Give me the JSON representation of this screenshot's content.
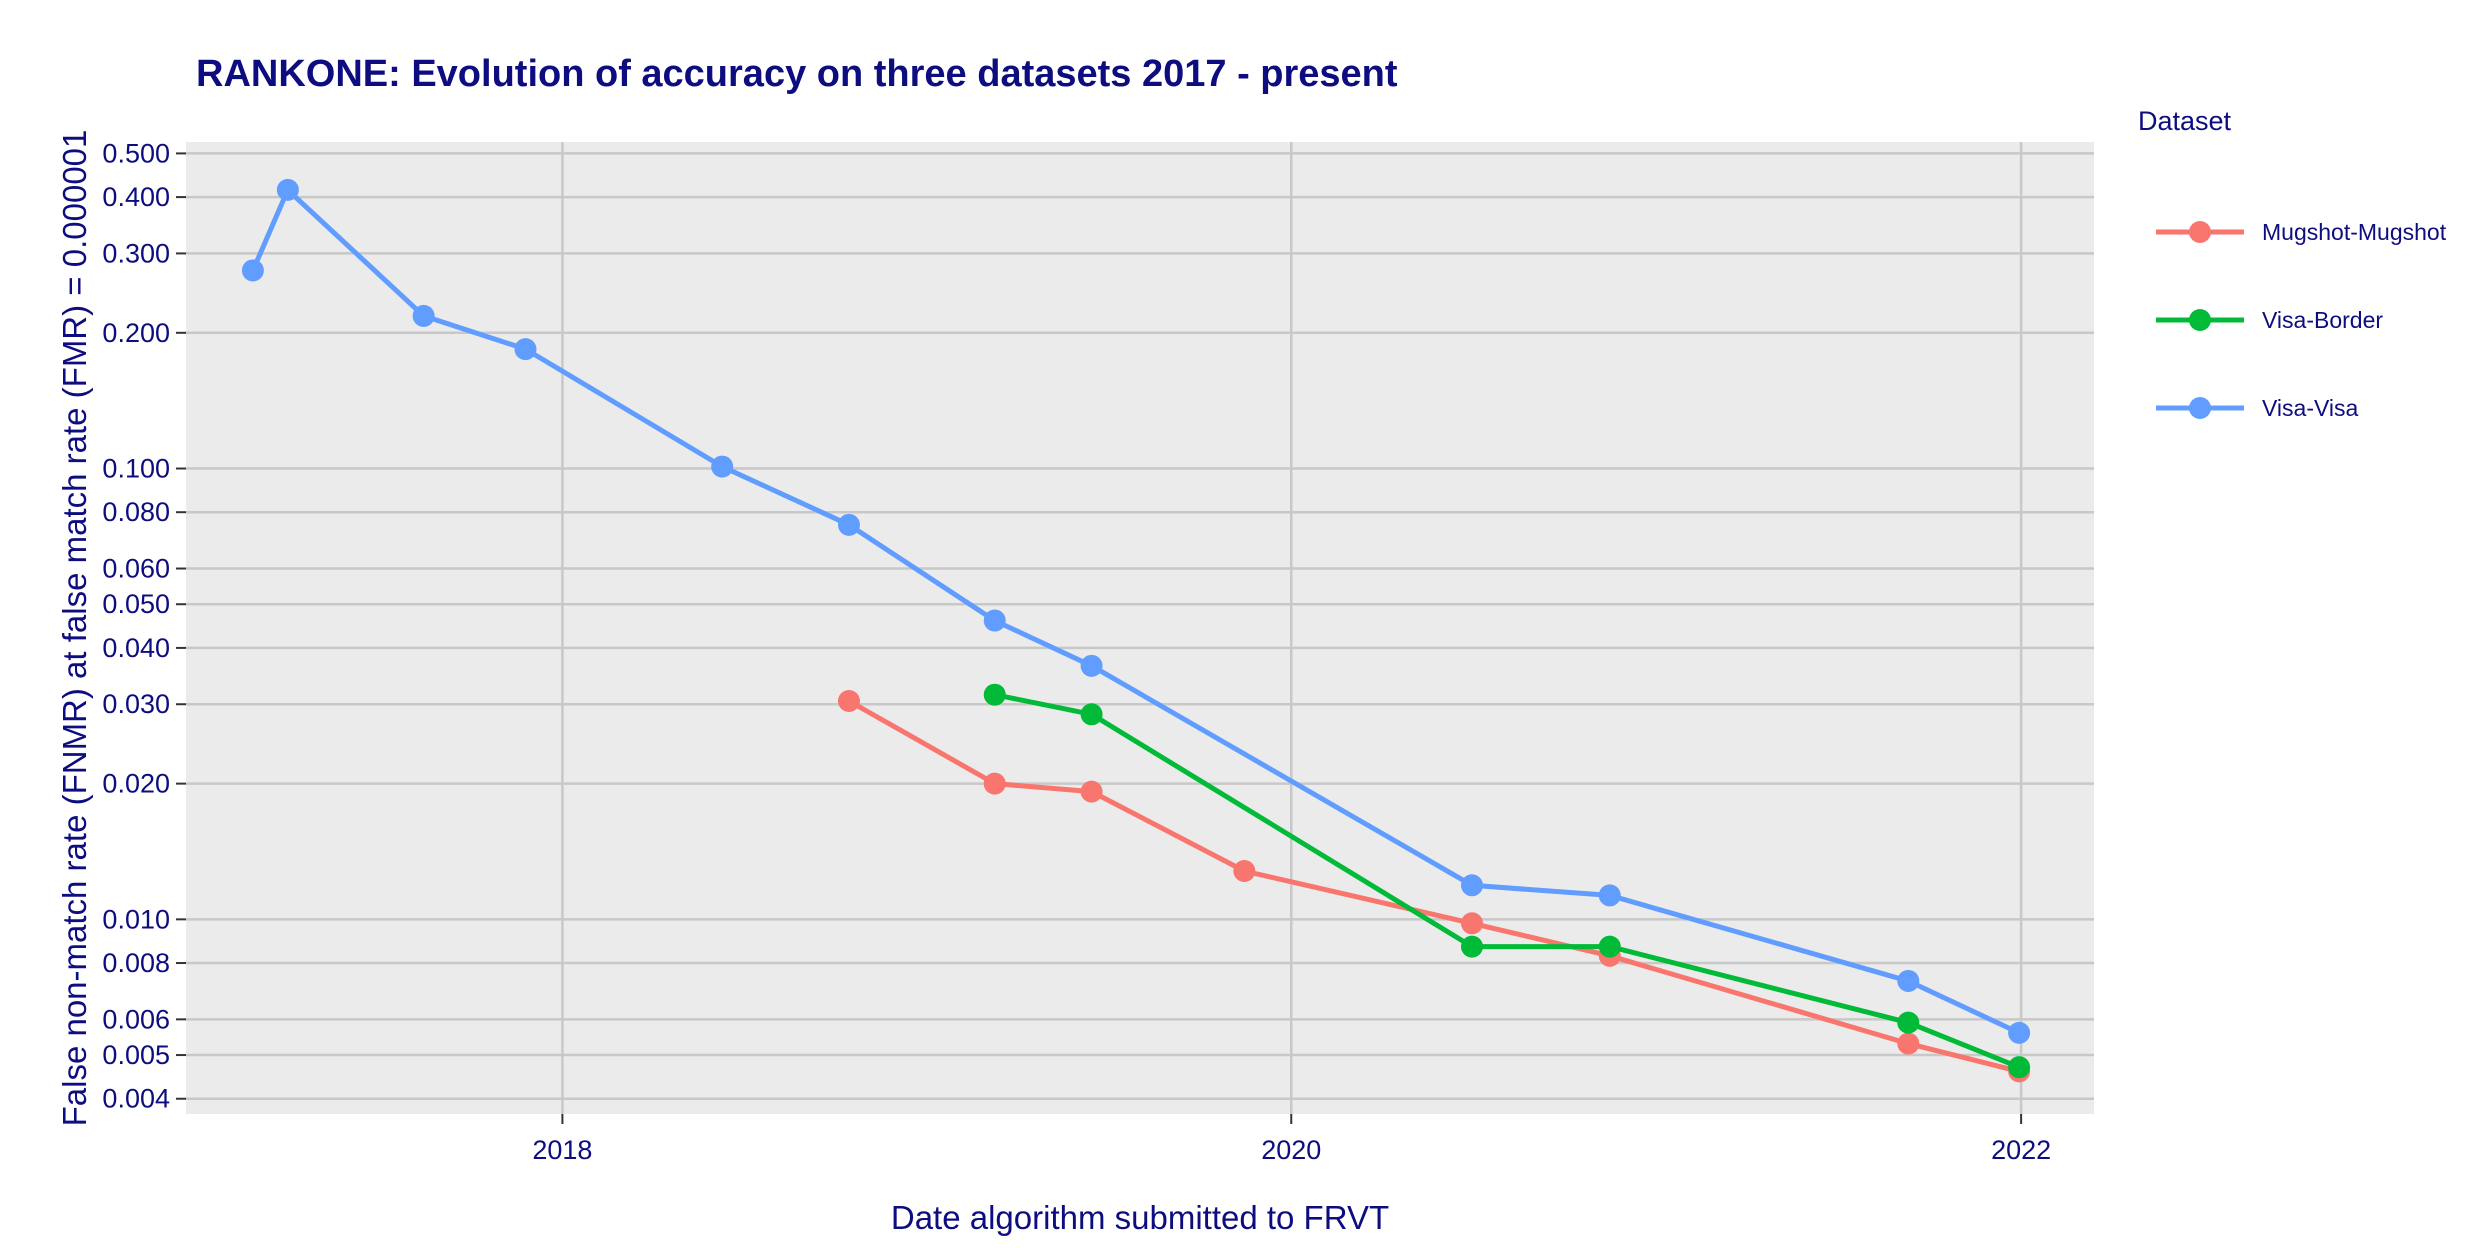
{
  "chart_data": {
    "type": "line",
    "title": "RANKONE: Evolution of accuracy on three datasets 2017 - present",
    "xlabel": "Date algorithm submitted to FRVT",
    "ylabel": "False non-match rate (FNMR) at false match rate (FMR) = 0.000001",
    "x_scale": "date",
    "y_scale": "log10",
    "xlim": [
      "2016-12-20",
      "2022-03-15"
    ],
    "ylim": [
      0.0037,
      0.53
    ],
    "x_ticks": [
      {
        "value": "2018-01-01",
        "label": "2018"
      },
      {
        "value": "2020-01-01",
        "label": "2020"
      },
      {
        "value": "2022-01-01",
        "label": "2022"
      }
    ],
    "y_ticks": [
      {
        "value": 0.5,
        "label": "0.500"
      },
      {
        "value": 0.4,
        "label": "0.400"
      },
      {
        "value": 0.3,
        "label": "0.300"
      },
      {
        "value": 0.2,
        "label": "0.200"
      },
      {
        "value": 0.1,
        "label": "0.100"
      },
      {
        "value": 0.08,
        "label": "0.080"
      },
      {
        "value": 0.06,
        "label": "0.060"
      },
      {
        "value": 0.05,
        "label": "0.050"
      },
      {
        "value": 0.04,
        "label": "0.040"
      },
      {
        "value": 0.03,
        "label": "0.030"
      },
      {
        "value": 0.02,
        "label": "0.020"
      },
      {
        "value": 0.01,
        "label": "0.010"
      },
      {
        "value": 0.008,
        "label": "0.008"
      },
      {
        "value": 0.006,
        "label": "0.006"
      },
      {
        "value": 0.005,
        "label": "0.005"
      },
      {
        "value": 0.004,
        "label": "0.004"
      }
    ],
    "grid": true,
    "legend": {
      "title": "Dataset",
      "position": "right"
    },
    "series": [
      {
        "name": "Mugshot-Mugshot",
        "color": "#f8766d",
        "points": [
          {
            "x": "2018-10-15",
            "y": 0.0305
          },
          {
            "x": "2019-03-10",
            "y": 0.02
          },
          {
            "x": "2019-06-15",
            "y": 0.0192
          },
          {
            "x": "2019-11-15",
            "y": 0.0128
          },
          {
            "x": "2020-06-30",
            "y": 0.0098
          },
          {
            "x": "2020-11-15",
            "y": 0.0083
          },
          {
            "x": "2021-09-10",
            "y": 0.0053
          },
          {
            "x": "2021-12-30",
            "y": 0.0046
          }
        ]
      },
      {
        "name": "Visa-Border",
        "color": "#00ba38",
        "points": [
          {
            "x": "2019-03-10",
            "y": 0.0315
          },
          {
            "x": "2019-06-15",
            "y": 0.0285
          },
          {
            "x": "2020-06-30",
            "y": 0.0087
          },
          {
            "x": "2020-11-15",
            "y": 0.0087
          },
          {
            "x": "2021-09-10",
            "y": 0.0059
          },
          {
            "x": "2021-12-30",
            "y": 0.0047
          }
        ]
      },
      {
        "name": "Visa-Visa",
        "color": "#619cff",
        "points": [
          {
            "x": "2017-02-25",
            "y": 0.275
          },
          {
            "x": "2017-04-01",
            "y": 0.415
          },
          {
            "x": "2017-08-15",
            "y": 0.218
          },
          {
            "x": "2017-11-25",
            "y": 0.184
          },
          {
            "x": "2018-06-10",
            "y": 0.101
          },
          {
            "x": "2018-10-15",
            "y": 0.075
          },
          {
            "x": "2019-03-10",
            "y": 0.046
          },
          {
            "x": "2019-06-15",
            "y": 0.0365
          },
          {
            "x": "2020-06-30",
            "y": 0.0119
          },
          {
            "x": "2020-11-15",
            "y": 0.0113
          },
          {
            "x": "2021-09-10",
            "y": 0.0073
          },
          {
            "x": "2021-12-30",
            "y": 0.0056
          }
        ]
      }
    ]
  }
}
